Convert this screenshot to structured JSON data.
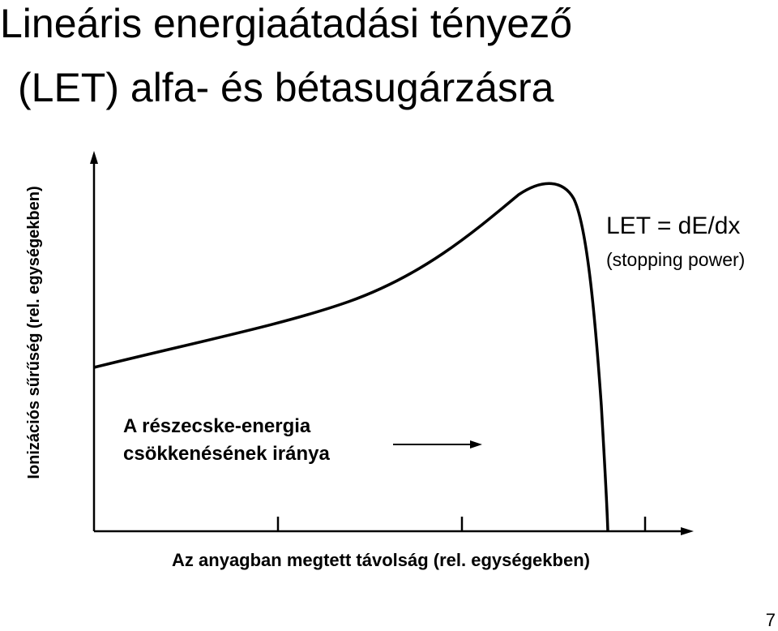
{
  "title": [
    "Lineáris energiaátadási tényező",
    "(LET) alfa- és bétasugárzásra"
  ],
  "diagram": {
    "y_axis_label": "Ionizációs sűrűség (rel. egységekben)",
    "x_axis_label": "Az anyagban megtett távolság (rel. egységekben)",
    "annotation": [
      "A részecske-energia",
      "csökkenésének iránya"
    ],
    "formula": "LET = dE/dx",
    "formula_note": "(stopping power)"
  },
  "page_number": "7"
}
